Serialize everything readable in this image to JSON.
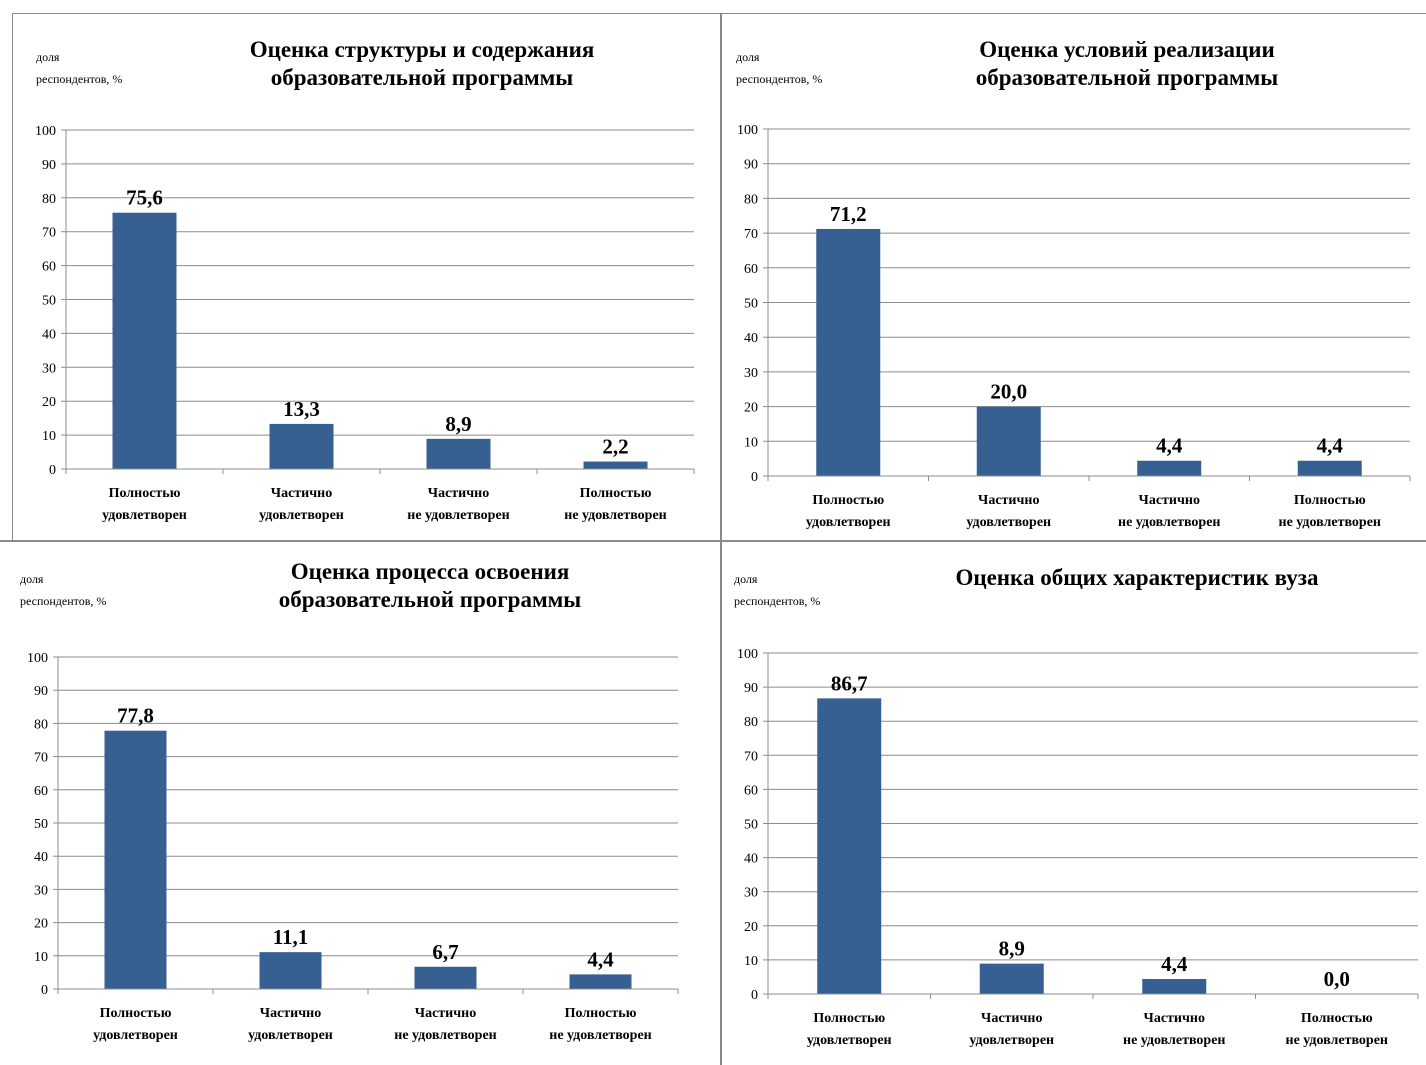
{
  "chart_data": [
    {
      "type": "bar",
      "title": "Оценка структуры и содержания\nобразовательной программы",
      "ylabel": "доля\nреспондентов, %",
      "categories": [
        "Полностью\nудовлетворен",
        "Частично\nудовлетворен",
        "Частично\nне удовлетворен",
        "Полностью\nне удовлетворен"
      ],
      "values": [
        75.6,
        13.3,
        8.9,
        2.2
      ],
      "value_labels": [
        "75,6",
        "13,3",
        "8,9",
        "2,2"
      ],
      "yticks": [
        "0",
        "10",
        "20",
        "30",
        "40",
        "50",
        "60",
        "70",
        "80",
        "90",
        "100"
      ],
      "ylim": [
        0,
        100
      ],
      "grid": true,
      "legend": false,
      "bar_color": "#376092"
    },
    {
      "type": "bar",
      "title": "Оценка условий реализации\nобразовательной программы",
      "ylabel": "доля\nреспондентов, %",
      "categories": [
        "Полностью\nудовлетворен",
        "Частично\nудовлетворен",
        "Частично\nне удовлетворен",
        "Полностью\nне удовлетворен"
      ],
      "values": [
        71.2,
        20.0,
        4.4,
        4.4
      ],
      "value_labels": [
        "71,2",
        "20,0",
        "4,4",
        "4,4"
      ],
      "yticks": [
        "0",
        "10",
        "20",
        "30",
        "40",
        "50",
        "60",
        "70",
        "80",
        "90",
        "100"
      ],
      "ylim": [
        0,
        100
      ],
      "grid": true,
      "legend": false,
      "bar_color": "#376092"
    },
    {
      "type": "bar",
      "title": "Оценка процесса освоения\nобразовательной программы",
      "ylabel": "доля\nреспондентов, %",
      "categories": [
        "Полностью\nудовлетворен",
        "Частично\nудовлетворен",
        "Частично\nне удовлетворен",
        "Полностью\nне удовлетворен"
      ],
      "values": [
        77.8,
        11.1,
        6.7,
        4.4
      ],
      "value_labels": [
        "77,8",
        "11,1",
        "6,7",
        "4,4"
      ],
      "yticks": [
        "0",
        "10",
        "20",
        "30",
        "40",
        "50",
        "60",
        "70",
        "80",
        "90",
        "100"
      ],
      "ylim": [
        0,
        100
      ],
      "grid": true,
      "legend": false,
      "bar_color": "#376092"
    },
    {
      "type": "bar",
      "title": "Оценка общих характеристик вуза",
      "ylabel": "доля\nреспондентов, %",
      "categories": [
        "Полностью\nудовлетворен",
        "Частично\nудовлетворен",
        "Частично\nне удовлетворен",
        "Полностью\nне удовлетворен"
      ],
      "values": [
        86.7,
        8.9,
        4.4,
        0.0
      ],
      "value_labels": [
        "86,7",
        "8,9",
        "4,4",
        "0,0"
      ],
      "yticks": [
        "0",
        "10",
        "20",
        "30",
        "40",
        "50",
        "60",
        "70",
        "80",
        "90",
        "100"
      ],
      "ylim": [
        0,
        100
      ],
      "grid": true,
      "legend": false,
      "bar_color": "#376092"
    }
  ]
}
